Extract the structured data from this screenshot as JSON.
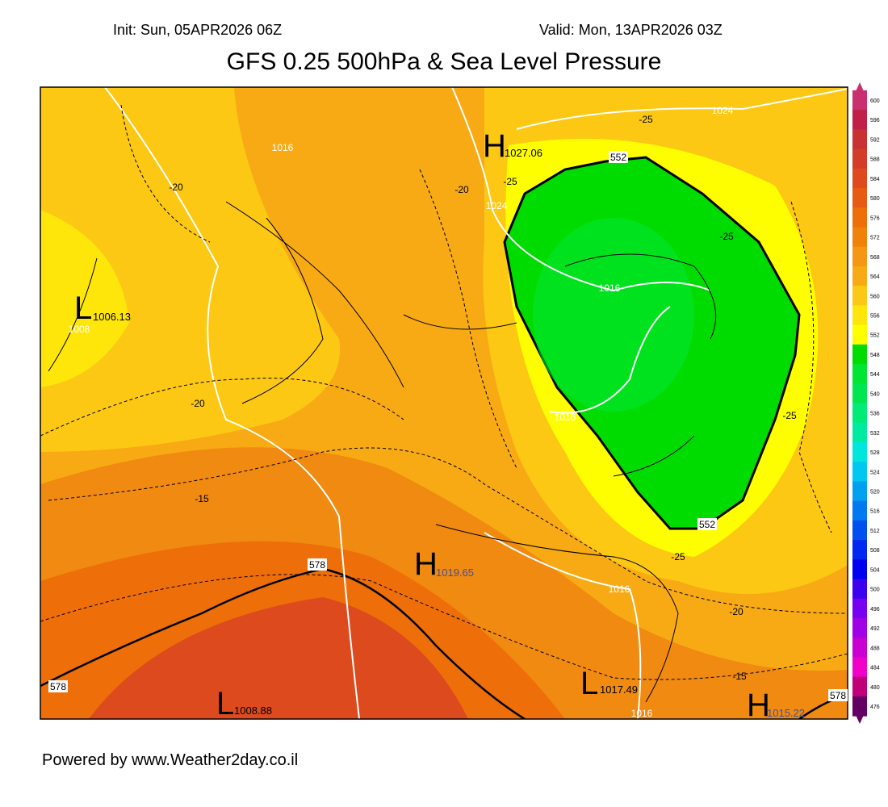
{
  "header": {
    "init": "Init: Sun, 05APR2026 06Z",
    "valid": "Valid: Mon, 13APR2026 03Z",
    "title": "GFS 0.25 500hPa & Sea Level Pressure"
  },
  "centers": [
    {
      "letter": "H",
      "value": "1027.06"
    },
    {
      "letter": "L",
      "value": "1006.13"
    },
    {
      "letter": "H",
      "value": "1019.65"
    },
    {
      "letter": "L",
      "value": "1017.49"
    },
    {
      "letter": "L",
      "value": "1008.88"
    },
    {
      "letter": "H",
      "value": "1015.22"
    }
  ],
  "contour_labels": [
    "1016",
    "-20",
    "1024",
    "-25",
    "-20",
    "-25",
    "1024",
    "552",
    "-25",
    "1016",
    "1008",
    "-20",
    "1016",
    "-25",
    "-15",
    "552",
    "578",
    "-25",
    "1016",
    "-20",
    "-15",
    "578",
    "1016",
    "578"
  ],
  "colorbar": {
    "levels": [
      "600",
      "596",
      "592",
      "588",
      "584",
      "580",
      "576",
      "572",
      "568",
      "564",
      "560",
      "556",
      "552",
      "548",
      "544",
      "540",
      "536",
      "532",
      "528",
      "524",
      "520",
      "516",
      "512",
      "508",
      "504",
      "500",
      "496",
      "492",
      "488",
      "484",
      "480",
      "476"
    ],
    "colors": [
      "#c8306e",
      "#c02048",
      "#c83232",
      "#d23c28",
      "#dc4a1e",
      "#e65a14",
      "#ee6e0a",
      "#f0820a",
      "#f59614",
      "#f8aa14",
      "#fcc814",
      "#fee60a",
      "#fefe00",
      "#00dc00",
      "#00e632",
      "#00e650",
      "#00eb78",
      "#00eba0",
      "#00e6dc",
      "#00c8f0",
      "#00a0f0",
      "#0078f0",
      "#0050f0",
      "#0028f0",
      "#0000f0",
      "#3c00f0",
      "#7800f0",
      "#a000e6",
      "#c800d2",
      "#f000c8",
      "#c00078",
      "#640064"
    ]
  },
  "footer": "Powered by www.Weather2day.co.il"
}
